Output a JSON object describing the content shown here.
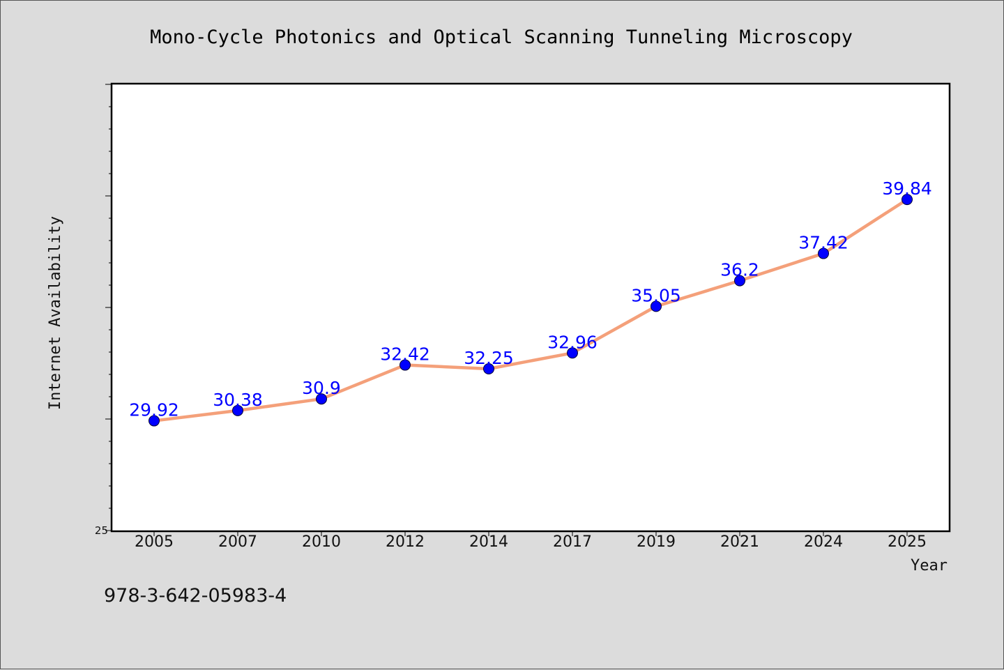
{
  "chart_data": {
    "type": "line",
    "title": "Mono-Cycle Photonics and Optical Scanning Tunneling Microscopy",
    "xlabel": "Year",
    "ylabel": "Internet Availability",
    "categories": [
      "2005",
      "2007",
      "2010",
      "2012",
      "2014",
      "2017",
      "2019",
      "2021",
      "2024",
      "2025"
    ],
    "series": [
      {
        "values": [
          29.92,
          30.38,
          30.9,
          32.42,
          32.25,
          32.96,
          35.05,
          36.2,
          37.42,
          39.84
        ]
      }
    ],
    "data_labels": [
      "29.92",
      "30.38",
      "30.9",
      "32.42",
      "32.25",
      "32.96",
      "35.05",
      "36.2",
      "37.42",
      "39.84"
    ],
    "ylim": [
      25,
      45
    ],
    "yticks_labeled": [
      "25"
    ],
    "grid": false,
    "legend": "none",
    "line_color": "#f4a07a",
    "marker_color": "#0000ff",
    "label_color": "#0000ff"
  },
  "footer": {
    "text": "978-3-642-05983-4"
  }
}
